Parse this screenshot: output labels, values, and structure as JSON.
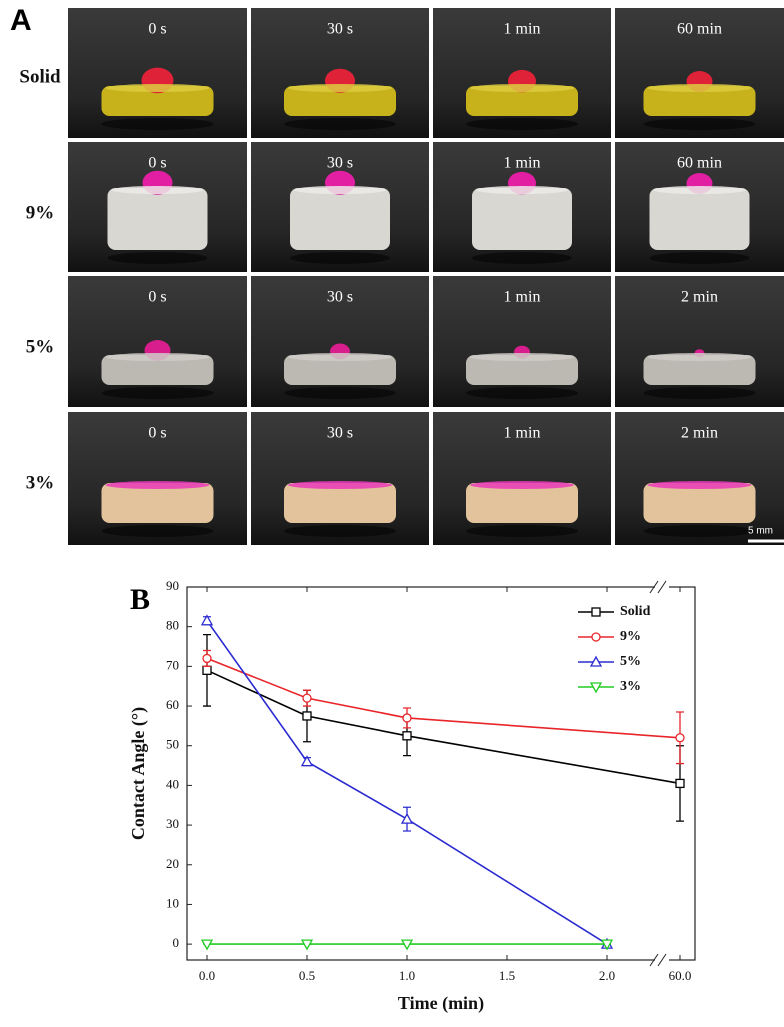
{
  "panel_a": {
    "label": "A",
    "rows": [
      {
        "label": "Solid",
        "times": [
          "0 s",
          "30 s",
          "1 min",
          "60 min"
        ]
      },
      {
        "label": "9%",
        "times": [
          "0 s",
          "30 s",
          "1 min",
          "60 min"
        ]
      },
      {
        "label": "5%",
        "times": [
          "0 s",
          "30 s",
          "1 min",
          "2 min"
        ]
      },
      {
        "label": "3%",
        "times": [
          "0 s",
          "30 s",
          "1 min",
          "2 min"
        ]
      }
    ],
    "scale_bar": "5 mm"
  },
  "chart_data": {
    "type": "line",
    "panel_label": "B",
    "x_label": "Time (min)",
    "y_label": "Contact Angle (°)",
    "xlim": [
      -0.1,
      60.3
    ],
    "xbreak": [
      2.25,
      59.7
    ],
    "xticks": [
      {
        "value": 0,
        "label": "0.0"
      },
      {
        "value": 0.5,
        "label": "0.5"
      },
      {
        "value": 1,
        "label": "1.0"
      },
      {
        "value": 1.5,
        "label": "1.5"
      },
      {
        "value": 2,
        "label": "2.0"
      },
      {
        "value": 60,
        "label": "60.0"
      }
    ],
    "ylim": [
      -4,
      90
    ],
    "yticks": [
      0,
      10,
      20,
      30,
      40,
      50,
      60,
      70,
      80,
      90
    ],
    "legend": "upper right",
    "series": [
      {
        "name": "Solid",
        "color": "#000000",
        "marker": "square",
        "x": [
          0,
          0.5,
          1,
          60
        ],
        "values": [
          69,
          57.5,
          52.5,
          40.5
        ],
        "errors": [
          9,
          6.5,
          5,
          9.5
        ]
      },
      {
        "name": "9%",
        "color": "#e8262a",
        "marker": "circle",
        "x": [
          0,
          0.5,
          1,
          60
        ],
        "values": [
          72,
          62,
          57,
          52
        ],
        "errors": [
          2,
          2,
          2.5,
          6.5
        ]
      },
      {
        "name": "5%",
        "color": "#2b2bd0",
        "marker": "triangle-up",
        "x": [
          0,
          0.5,
          1,
          2
        ],
        "values": [
          81.5,
          46,
          31.5,
          0
        ],
        "errors": [
          1,
          1,
          3,
          0.5
        ]
      },
      {
        "name": "3%",
        "color": "#22cc22",
        "marker": "triangle-down",
        "x": [
          0,
          0.5,
          1,
          2
        ],
        "values": [
          0,
          0,
          0,
          0
        ],
        "errors": [
          0,
          0,
          0,
          0
        ]
      }
    ]
  }
}
